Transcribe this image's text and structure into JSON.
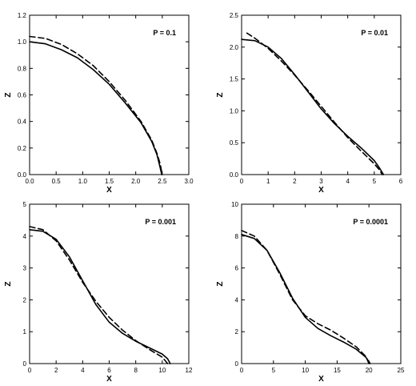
{
  "chart_data": [
    {
      "type": "line",
      "annotation": "P = 0.1",
      "xlabel": "X",
      "ylabel": "Z",
      "xlim": [
        0,
        3.0
      ],
      "ylim": [
        0,
        1.2
      ],
      "xticks": [
        "0.0",
        "0.5",
        "1.0",
        "1.5",
        "2.0",
        "2.5",
        "3.0"
      ],
      "yticks": [
        "0.0",
        "0.2",
        "0.4",
        "0.6",
        "0.8",
        "1.0",
        "1.2"
      ],
      "xtick_values": [
        0,
        0.5,
        1.0,
        1.5,
        2.0,
        2.5,
        3.0
      ],
      "ytick_values": [
        0,
        0.2,
        0.4,
        0.6,
        0.8,
        1.0,
        1.2
      ],
      "series": [
        {
          "style": "solid",
          "x": [
            0,
            0.3,
            0.6,
            0.9,
            1.2,
            1.5,
            1.8,
            2.1,
            2.3,
            2.4,
            2.45,
            2.49
          ],
          "y": [
            1.0,
            0.985,
            0.94,
            0.88,
            0.79,
            0.68,
            0.54,
            0.39,
            0.25,
            0.15,
            0.07,
            0.0
          ]
        },
        {
          "style": "dashed",
          "x": [
            0,
            0.3,
            0.6,
            0.9,
            1.2,
            1.5,
            1.8,
            2.1,
            2.3,
            2.4,
            2.46,
            2.5
          ],
          "y": [
            1.04,
            1.025,
            0.98,
            0.91,
            0.82,
            0.7,
            0.56,
            0.4,
            0.26,
            0.16,
            0.08,
            0.0
          ]
        }
      ]
    },
    {
      "type": "line",
      "annotation": "P = 0.01",
      "xlabel": "X",
      "ylabel": "Z",
      "xlim": [
        0,
        6
      ],
      "ylim": [
        0,
        2.5
      ],
      "xticks": [
        "0",
        "1",
        "2",
        "3",
        "4",
        "5",
        "6"
      ],
      "yticks": [
        "0.0",
        "0.5",
        "1.0",
        "1.5",
        "2.0",
        "2.5"
      ],
      "xtick_values": [
        0,
        1,
        2,
        3,
        4,
        5,
        6
      ],
      "ytick_values": [
        0,
        0.5,
        1.0,
        1.5,
        2.0,
        2.5
      ],
      "series": [
        {
          "style": "solid",
          "x": [
            0,
            0.5,
            1.0,
            1.5,
            2.0,
            2.5,
            3.0,
            3.5,
            4.0,
            4.5,
            5.0,
            5.2,
            5.35
          ],
          "y": [
            2.12,
            2.1,
            2.0,
            1.82,
            1.57,
            1.3,
            1.03,
            0.8,
            0.6,
            0.42,
            0.22,
            0.1,
            0.0
          ]
        },
        {
          "style": "dashed",
          "x": [
            0.2,
            0.5,
            1.0,
            1.5,
            2.0,
            2.5,
            3.0,
            3.5,
            4.0,
            4.5,
            5.0,
            5.2,
            5.3
          ],
          "y": [
            2.22,
            2.14,
            1.98,
            1.78,
            1.56,
            1.32,
            1.07,
            0.82,
            0.58,
            0.37,
            0.17,
            0.07,
            0.0
          ]
        }
      ]
    },
    {
      "type": "line",
      "annotation": "P = 0.001",
      "xlabel": "X",
      "ylabel": "Z",
      "xlim": [
        0,
        12
      ],
      "ylim": [
        0,
        5
      ],
      "xticks": [
        "0",
        "2",
        "4",
        "6",
        "8",
        "10",
        "12"
      ],
      "yticks": [
        "0",
        "1",
        "2",
        "3",
        "4",
        "5"
      ],
      "xtick_values": [
        0,
        2,
        4,
        6,
        8,
        10,
        12
      ],
      "ytick_values": [
        0,
        1,
        2,
        3,
        4,
        5
      ],
      "series": [
        {
          "style": "solid",
          "x": [
            0,
            1,
            2,
            3,
            4,
            5,
            6,
            7,
            8,
            9,
            10,
            10.4,
            10.6
          ],
          "y": [
            4.2,
            4.15,
            3.9,
            3.35,
            2.6,
            1.85,
            1.3,
            0.95,
            0.7,
            0.5,
            0.3,
            0.15,
            0.0
          ]
        },
        {
          "style": "dashed",
          "x": [
            0,
            1,
            2,
            3,
            4,
            5,
            6,
            7,
            8,
            9,
            10,
            10.2,
            10.4
          ],
          "y": [
            4.3,
            4.2,
            3.85,
            3.25,
            2.55,
            1.95,
            1.45,
            1.05,
            0.72,
            0.45,
            0.2,
            0.1,
            0.0
          ]
        }
      ]
    },
    {
      "type": "line",
      "annotation": "P = 0.0001",
      "xlabel": "X",
      "ylabel": "Z",
      "xlim": [
        0,
        25
      ],
      "ylim": [
        0,
        10
      ],
      "xticks": [
        "0",
        "5",
        "10",
        "15",
        "20",
        "25"
      ],
      "yticks": [
        "0",
        "2",
        "4",
        "6",
        "8",
        "10"
      ],
      "xtick_values": [
        0,
        5,
        10,
        15,
        20,
        25
      ],
      "ytick_values": [
        0,
        2,
        4,
        6,
        8,
        10
      ],
      "series": [
        {
          "style": "solid",
          "x": [
            0,
            2,
            4,
            6,
            8,
            10,
            12,
            14,
            16,
            18,
            19.5,
            20.2
          ],
          "y": [
            8.1,
            7.85,
            7.1,
            5.7,
            4.1,
            2.9,
            2.2,
            1.75,
            1.35,
            0.9,
            0.4,
            0.0
          ]
        },
        {
          "style": "dashed",
          "x": [
            0,
            2,
            4,
            6,
            8,
            10,
            12,
            14,
            16,
            18,
            19.5,
            20.0
          ],
          "y": [
            8.35,
            8.0,
            7.1,
            5.6,
            4.0,
            3.0,
            2.5,
            2.1,
            1.6,
            1.05,
            0.45,
            0.0
          ]
        }
      ]
    }
  ]
}
